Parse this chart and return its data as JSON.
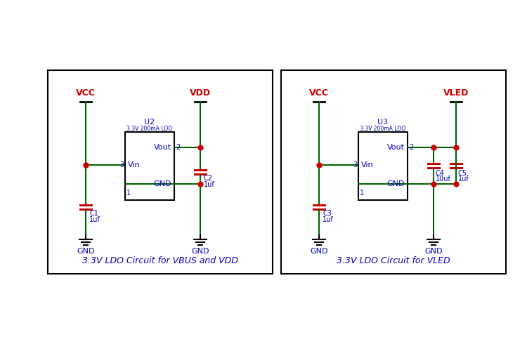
{
  "bg_color": "#ffffff",
  "border_color": "#000000",
  "green": "#006400",
  "red": "#cc0000",
  "blue": "#0000bb",
  "circuit1": {
    "label": "3.3V LDO Circuit for VBUS and VDD",
    "vcc_label": "VCC",
    "vdd_label": "VDD",
    "ic_label": "U2",
    "ic_sublabel": "3.3V 200mA LDO",
    "vout_label": "Vout",
    "vin_label": "Vin",
    "gnd_label": "GND",
    "pin2": "2",
    "pin3": "3",
    "pin1": "1",
    "c1_label": "C1",
    "c1_val": "1uf",
    "c2_label": "C2",
    "c2_val": "1uf"
  },
  "circuit2": {
    "label": "3.3V LDO Circuit for VLED",
    "vcc_label": "VCC",
    "vled_label": "VLED",
    "ic_label": "U3",
    "ic_sublabel": "3.3V 200mA LDO",
    "vout_label": "Vout",
    "vin_label": "Vin",
    "gnd_label": "GND",
    "pin2": "2",
    "pin3": "3",
    "pin1": "1",
    "c3_label": "C3",
    "c3_val": "1uf",
    "c4_label": "C4",
    "c4_val": "10uf",
    "c5_label": "C5",
    "c5_val": "1uf"
  }
}
